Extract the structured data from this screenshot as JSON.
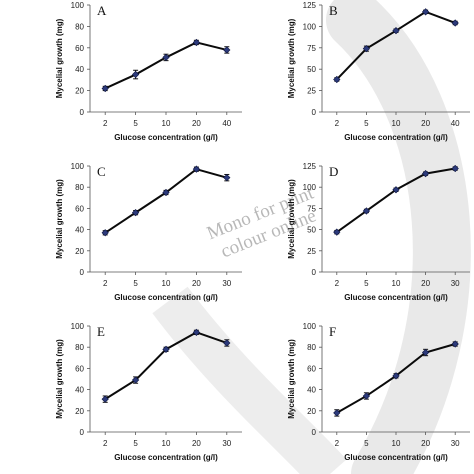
{
  "watermark": {
    "line1": "Mono for print",
    "line2": "colour online"
  },
  "chart_data": [
    {
      "type": "line",
      "label": "A",
      "categories": [
        "2",
        "5",
        "10",
        "20",
        "40"
      ],
      "values": [
        22,
        35,
        51,
        65,
        58
      ],
      "errors": [
        2,
        4,
        3,
        2,
        3
      ],
      "ylim": [
        0,
        100
      ],
      "yticks": [
        "0",
        "20",
        "40",
        "60",
        "80",
        "100"
      ],
      "xlabel": "Glucose concentration (g/l)",
      "ylabel": "Mycelial growth (mg)"
    },
    {
      "type": "line",
      "label": "B",
      "categories": [
        "2",
        "5",
        "10",
        "20",
        "40"
      ],
      "values": [
        38,
        74,
        95,
        117,
        104
      ],
      "errors": [
        2,
        3,
        2,
        2,
        2
      ],
      "ylim": [
        0,
        125
      ],
      "yticks": [
        "0",
        "25",
        "50",
        "75",
        "100",
        "125"
      ],
      "xlabel": "Glucose concentration (g/l)",
      "ylabel": "Mycelial growth (mg)"
    },
    {
      "type": "line",
      "label": "C",
      "categories": [
        "2",
        "5",
        "10",
        "20",
        "30"
      ],
      "values": [
        37,
        56,
        75,
        97,
        89
      ],
      "errors": [
        2,
        2,
        2,
        2,
        3
      ],
      "ylim": [
        0,
        100
      ],
      "yticks": [
        "0",
        "20",
        "40",
        "60",
        "80",
        "100"
      ],
      "xlabel": "Glucose concentration (g/l)",
      "ylabel": "Mycelial growth (mg)"
    },
    {
      "type": "line",
      "label": "D",
      "categories": [
        "2",
        "5",
        "10",
        "20",
        "30"
      ],
      "values": [
        47,
        72,
        97,
        116,
        122
      ],
      "errors": [
        2,
        2,
        2,
        2,
        2
      ],
      "ylim": [
        0,
        125
      ],
      "yticks": [
        "0",
        "25",
        "50",
        "75",
        "100",
        "125"
      ],
      "xlabel": "Glucose concentration (g/l)",
      "ylabel": "Mycelial growth (mg)"
    },
    {
      "type": "line",
      "label": "E",
      "categories": [
        "2",
        "5",
        "10",
        "20",
        "30"
      ],
      "values": [
        31,
        49,
        78,
        94,
        84
      ],
      "errors": [
        3,
        3,
        2,
        2,
        3
      ],
      "ylim": [
        0,
        100
      ],
      "yticks": [
        "0",
        "20",
        "40",
        "60",
        "80",
        "100"
      ],
      "xlabel": "Glucose concentration (g/l)",
      "ylabel": "Mycelial growth (mg)"
    },
    {
      "type": "line",
      "label": "F",
      "categories": [
        "2",
        "5",
        "10",
        "20",
        "30"
      ],
      "values": [
        18,
        34,
        53,
        75,
        83
      ],
      "errors": [
        3,
        3,
        2,
        3,
        2
      ],
      "ylim": [
        0,
        100
      ],
      "yticks": [
        "0",
        "20",
        "40",
        "60",
        "80",
        "100"
      ],
      "xlabel": "Glucose concentration (g/l)",
      "ylabel": "Mycelial growth (mg)"
    }
  ]
}
